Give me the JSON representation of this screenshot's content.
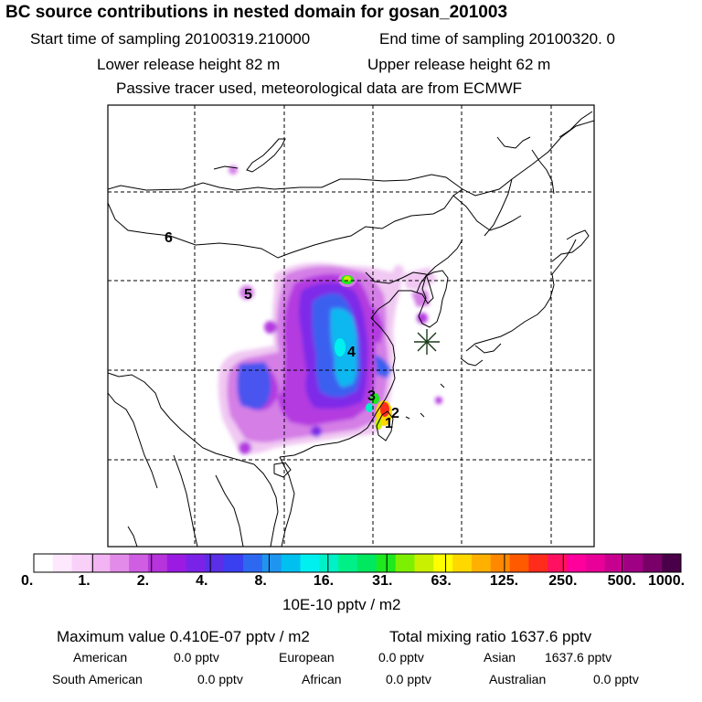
{
  "header": {
    "title": "BC  source contributions in nested domain for gosan_201003",
    "start_label": "Start time of sampling 20100319.210000",
    "end_label": "End time of sampling 20100320.     0",
    "lower_label": "Lower release height   82 m",
    "upper_label": "Upper release height   62 m",
    "note": "Passive tracer used, meteorological data are from ECMWF"
  },
  "map": {
    "receptor_marker": "star-icon",
    "region_labels": [
      "1",
      "2",
      "3",
      "4",
      "5",
      "6"
    ]
  },
  "colorbar": {
    "ticks": [
      "0.",
      "1.",
      "2.",
      "4.",
      "8.",
      "16.",
      "31.",
      "63.",
      "125.",
      "250.",
      "500.",
      "1000."
    ],
    "unit": "10E-10 pptv / m2",
    "colors": [
      "#ffffff",
      "#fde8fd",
      "#f8d0f8",
      "#f2b4f2",
      "#e38be9",
      "#cf5ee2",
      "#b733db",
      "#9b1be3",
      "#7b22e8",
      "#5b2ee8",
      "#3a3ff0",
      "#2c68f0",
      "#1f95f0",
      "#00c0f0",
      "#00f0f0",
      "#00f0c8",
      "#00f088",
      "#00e860",
      "#1ee81e",
      "#7cf000",
      "#c8f000",
      "#ffff00",
      "#ffd800",
      "#ffb000",
      "#ff8800",
      "#ff5a00",
      "#ff2c1c",
      "#ff1060",
      "#ff009c",
      "#e80098",
      "#c80090",
      "#a00084",
      "#780068",
      "#4a0048"
    ]
  },
  "stats": {
    "max_label": "Maximum value  0.410E-07 pptv / m2",
    "total_label": "Total mixing ratio     1637.6 pptv",
    "american_label": "American",
    "american_value": "0.0 pptv",
    "european_label": "European",
    "european_value": "0.0 pptv",
    "asian_label": "Asian",
    "asian_value": "1637.6 pptv",
    "south_american_label": "South American",
    "south_american_value": "0.0 pptv",
    "african_label": "African",
    "african_value": "0.0 pptv",
    "australian_label": "Australian",
    "australian_value": "0.0 pptv"
  }
}
